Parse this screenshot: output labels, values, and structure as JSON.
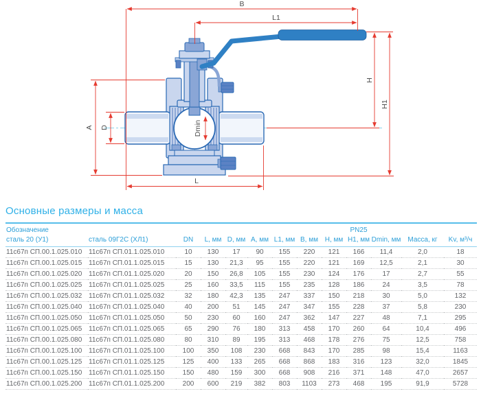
{
  "drawing": {
    "dim_labels": {
      "B": "B",
      "L1": "L1",
      "H": "H",
      "H1": "H1",
      "A": "A",
      "D": "D",
      "Dmin": "Dmin",
      "L": "L"
    }
  },
  "table": {
    "title": "Основные размеры и масса",
    "group_headers": {
      "designation": "Обозначение",
      "pn": "PN25"
    },
    "columns": [
      "сталь 20 (У1)",
      "сталь 09Г2С (ХЛ1)",
      "DN",
      "L, мм",
      "D, мм",
      "A, мм",
      "L1, мм",
      "B, мм",
      "H, мм",
      "H1, мм",
      "Dmin, мм",
      "Масса, кг",
      "Kv, м³/ч"
    ],
    "rows": [
      [
        "11с67п СП.00.1.025.010",
        "11с67п СП.01.1.025.010",
        "10",
        "130",
        "17",
        "90",
        "155",
        "220",
        "121",
        "166",
        "11,4",
        "2,0",
        "18"
      ],
      [
        "11с67п СП.00.1.025.015",
        "11с67п СП.01.1.025.015",
        "15",
        "130",
        "21,3",
        "95",
        "155",
        "220",
        "121",
        "169",
        "12,5",
        "2,1",
        "30"
      ],
      [
        "11с67п СП.00.1.025.020",
        "11с67п СП.01.1.025.020",
        "20",
        "150",
        "26,8",
        "105",
        "155",
        "230",
        "124",
        "176",
        "17",
        "2,7",
        "55"
      ],
      [
        "11с67п СП.00.1.025.025",
        "11с67п СП.01.1.025.025",
        "25",
        "160",
        "33,5",
        "115",
        "155",
        "235",
        "128",
        "186",
        "24",
        "3,5",
        "78"
      ],
      [
        "11с67п СП.00.1.025.032",
        "11с67п СП.01.1.025.032",
        "32",
        "180",
        "42,3",
        "135",
        "247",
        "337",
        "150",
        "218",
        "30",
        "5,0",
        "132"
      ],
      [
        "11с67п СП.00.1.025.040",
        "11с67п СП.01.1.025.040",
        "40",
        "200",
        "51",
        "145",
        "247",
        "347",
        "155",
        "228",
        "37",
        "5,8",
        "230"
      ],
      [
        "11с67п СП.00.1.025.050",
        "11с67п СП.01.1.025.050",
        "50",
        "230",
        "60",
        "160",
        "247",
        "362",
        "147",
        "227",
        "48",
        "7,1",
        "295"
      ],
      [
        "11с67п СП.00.1.025.065",
        "11с67п СП.01.1.025.065",
        "65",
        "290",
        "76",
        "180",
        "313",
        "458",
        "170",
        "260",
        "64",
        "10,4",
        "496"
      ],
      [
        "11с67п СП.00.1.025.080",
        "11с67п СП.01.1.025.080",
        "80",
        "310",
        "89",
        "195",
        "313",
        "468",
        "178",
        "276",
        "75",
        "12,5",
        "758"
      ],
      [
        "11с67п СП.00.1.025.100",
        "11с67п СП.01.1.025.100",
        "100",
        "350",
        "108",
        "230",
        "668",
        "843",
        "170",
        "285",
        "98",
        "15,4",
        "1163"
      ],
      [
        "11с67п СП.00.1.025.125",
        "11с67п СП.01.1.025.125",
        "125",
        "400",
        "133",
        "265",
        "668",
        "868",
        "183",
        "316",
        "123",
        "32,0",
        "1845"
      ],
      [
        "11с67п СП.00.1.025.150",
        "11с67п СП.01.1.025.150",
        "150",
        "480",
        "159",
        "300",
        "668",
        "908",
        "216",
        "371",
        "148",
        "47,0",
        "2657"
      ],
      [
        "11с67п СП.00.1.025.200",
        "11с67п СП.01.1.025.200",
        "200",
        "600",
        "219",
        "382",
        "803",
        "1103",
        "273",
        "468",
        "195",
        "91,9",
        "5728"
      ]
    ]
  },
  "colors": {
    "accent_blue": "#2d9fd8",
    "title_blue": "#2fb0e7",
    "dimension_red": "#e53b30",
    "body_outline_blue": "#2a69b4",
    "body_fill_light": "#c9d6ee",
    "handle_blue": "#2f80c4",
    "text_gray": "#636569"
  }
}
